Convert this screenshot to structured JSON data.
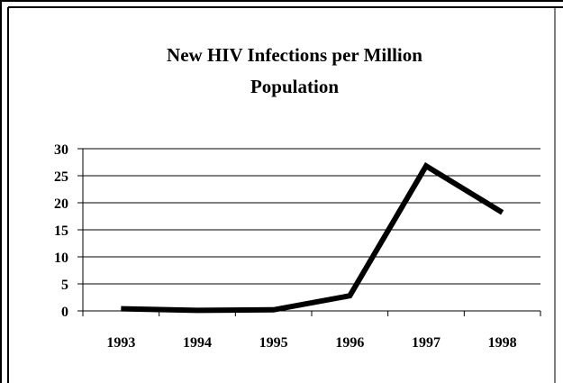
{
  "chart_data": {
    "type": "line",
    "title_lines": [
      "New HIV Infections per Million",
      "Population"
    ],
    "xlabel": "",
    "ylabel": "",
    "categories": [
      "1993",
      "1994",
      "1995",
      "1996",
      "1997",
      "1998"
    ],
    "values": [
      0.4,
      0.1,
      0.2,
      2.8,
      26.8,
      18.2
    ],
    "ylim": [
      0,
      30
    ],
    "yticks": [
      "0",
      "5",
      "10",
      "15",
      "20",
      "25",
      "30"
    ],
    "grid": true,
    "legend": "none",
    "line_color": "#000000"
  }
}
